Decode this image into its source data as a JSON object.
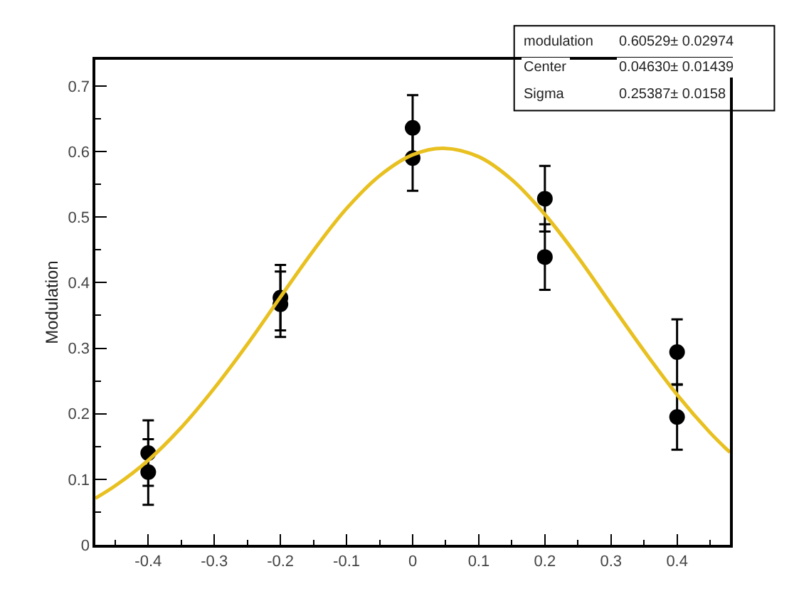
{
  "chart_data": {
    "type": "scatter",
    "ylabel": "Modulation",
    "xlim": [
      -0.48,
      0.48
    ],
    "xticks": [
      -0.4,
      -0.3,
      -0.2,
      -0.1,
      0,
      0.1,
      0.2,
      0.3,
      0.4
    ],
    "ylim": [
      0,
      0.74
    ],
    "yticks": [
      0,
      0.1,
      0.2,
      0.3,
      0.4,
      0.5,
      0.6,
      0.7
    ],
    "marker": "circle",
    "series": [
      {
        "color": "#000000",
        "x": [
          -0.4,
          -0.4,
          -0.2,
          -0.2,
          0,
          0,
          0.2,
          0.2,
          0.4,
          0.4
        ],
        "values": [
          0.14,
          0.111,
          0.377,
          0.367,
          0.636,
          0.59,
          0.528,
          0.439,
          0.294,
          0.195
        ],
        "errors": [
          0.05,
          0.05,
          0.05,
          0.05,
          0.05,
          0.05,
          0.05,
          0.05,
          0.05,
          0.05
        ]
      },
      {
        "type": "line",
        "color": "#e8c020",
        "marker": "none",
        "x": [
          -0.48,
          -0.45,
          -0.4,
          -0.35,
          -0.3,
          -0.25,
          -0.2,
          -0.15,
          -0.1,
          -0.05,
          0,
          0.0463,
          0.1,
          0.15,
          0.2,
          0.25,
          0.3,
          0.35,
          0.4,
          0.45,
          0.48
        ],
        "values": [
          0.071,
          0.09,
          0.129,
          0.179,
          0.239,
          0.306,
          0.378,
          0.449,
          0.513,
          0.563,
          0.595,
          0.605,
          0.592,
          0.557,
          0.504,
          0.439,
          0.367,
          0.296,
          0.229,
          0.171,
          0.141
        ]
      }
    ],
    "annotations": [
      "modulation",
      "0.60529± 0.02974",
      "Center",
      "0.04630± 0.01439",
      "Sigma",
      "0.25387± 0.0158"
    ]
  }
}
